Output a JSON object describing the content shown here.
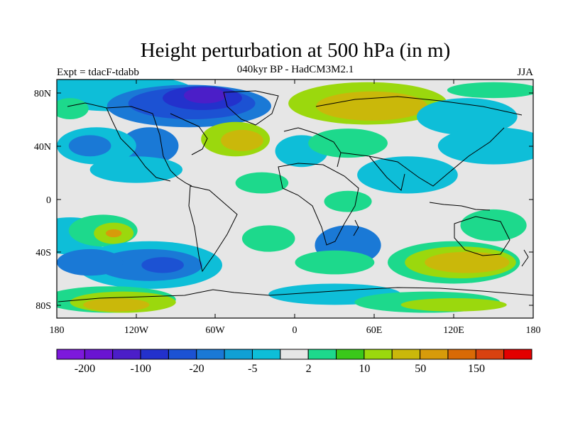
{
  "title": "Height perturbation at 500 hPa (in m)",
  "subtitle": "040kyr BP - HadCM3M2.1",
  "left_label": "Expt = tdacF-tdabb",
  "right_label": "JJA",
  "y_ticks": [
    "80N",
    "40N",
    "0",
    "40S",
    "80S"
  ],
  "x_ticks": [
    "180",
    "120W",
    "60W",
    "0",
    "60E",
    "120E",
    "180"
  ],
  "colorbar": {
    "colors": [
      "#7d19dc",
      "#6a14d2",
      "#4b1ec8",
      "#2331cc",
      "#1c52d3",
      "#1a79d6",
      "#10a0d4",
      "#0ebed8",
      "#e6e6e6",
      "#1dd98c",
      "#3ac81a",
      "#9bd80d",
      "#cab80a",
      "#d79b0a",
      "#d96a06",
      "#d9420f",
      "#e30000"
    ],
    "labels": [
      "-200",
      "-100",
      "-20",
      "-5",
      "2",
      "10",
      "50",
      "150"
    ]
  },
  "map_fields": {
    "grey": "#e6e6e6",
    "blobs": [
      {
        "c": "#0ebed8",
        "lon": -135,
        "lat": 80,
        "rx": 60,
        "ry": 14
      },
      {
        "c": "#1a79d6",
        "lon": -80,
        "lat": 70,
        "rx": 62,
        "ry": 16
      },
      {
        "c": "#1c52d3",
        "lon": -78,
        "lat": 72,
        "rx": 48,
        "ry": 12
      },
      {
        "c": "#2331cc",
        "lon": -70,
        "lat": 76,
        "rx": 30,
        "ry": 9
      },
      {
        "c": "#4b1ec8",
        "lon": -68,
        "lat": 78,
        "rx": 16,
        "ry": 6
      },
      {
        "c": "#1a79d6",
        "lon": -110,
        "lat": 40,
        "rx": 22,
        "ry": 14
      },
      {
        "c": "#0ebed8",
        "lon": -150,
        "lat": 40,
        "rx": 30,
        "ry": 14
      },
      {
        "c": "#1a79d6",
        "lon": -155,
        "lat": 40,
        "rx": 16,
        "ry": 8
      },
      {
        "c": "#0ebed8",
        "lon": -120,
        "lat": 22,
        "rx": 35,
        "ry": 10
      },
      {
        "c": "#9bd80d",
        "lon": -45,
        "lat": 45,
        "rx": 26,
        "ry": 13
      },
      {
        "c": "#cab80a",
        "lon": -40,
        "lat": 44,
        "rx": 16,
        "ry": 8
      },
      {
        "c": "#1dd98c",
        "lon": -170,
        "lat": 68,
        "rx": 14,
        "ry": 8
      },
      {
        "c": "#9bd80d",
        "lon": 55,
        "lat": 72,
        "rx": 60,
        "ry": 16
      },
      {
        "c": "#cab80a",
        "lon": 58,
        "lat": 70,
        "rx": 42,
        "ry": 11
      },
      {
        "c": "#1dd98c",
        "lon": 150,
        "lat": 82,
        "rx": 35,
        "ry": 6
      },
      {
        "c": "#1a79d6",
        "lon": 130,
        "lat": 62,
        "rx": 25,
        "ry": 9
      },
      {
        "c": "#0ebed8",
        "lon": 130,
        "lat": 62,
        "rx": 38,
        "ry": 14
      },
      {
        "c": "#1a79d6",
        "lon": 155,
        "lat": 38,
        "rx": 30,
        "ry": 10
      },
      {
        "c": "#0ebed8",
        "lon": 150,
        "lat": 40,
        "rx": 42,
        "ry": 14
      },
      {
        "c": "#0ebed8",
        "lon": 5,
        "lat": 36,
        "rx": 20,
        "ry": 12
      },
      {
        "c": "#1dd98c",
        "lon": 40,
        "lat": 42,
        "rx": 30,
        "ry": 11
      },
      {
        "c": "#1a79d6",
        "lon": 90,
        "lat": 18,
        "rx": 28,
        "ry": 10
      },
      {
        "c": "#0ebed8",
        "lon": 85,
        "lat": 18,
        "rx": 38,
        "ry": 14
      },
      {
        "c": "#1dd98c",
        "lon": -25,
        "lat": 12,
        "rx": 20,
        "ry": 8
      },
      {
        "c": "#1dd98c",
        "lon": 40,
        "lat": -2,
        "rx": 18,
        "ry": 8
      },
      {
        "c": "#0ebed8",
        "lon": -170,
        "lat": -28,
        "rx": 30,
        "ry": 14
      },
      {
        "c": "#1dd98c",
        "lon": -145,
        "lat": -24,
        "rx": 26,
        "ry": 12
      },
      {
        "c": "#9bd80d",
        "lon": -137,
        "lat": -26,
        "rx": 15,
        "ry": 8
      },
      {
        "c": "#d79b0a",
        "lon": -137,
        "lat": -26,
        "rx": 6,
        "ry": 3
      },
      {
        "c": "#1dd98c",
        "lon": -20,
        "lat": -30,
        "rx": 20,
        "ry": 10
      },
      {
        "c": "#1a79d6",
        "lon": 40,
        "lat": -35,
        "rx": 25,
        "ry": 15
      },
      {
        "c": "#1dd98c",
        "lon": 150,
        "lat": -20,
        "rx": 25,
        "ry": 12
      },
      {
        "c": "#0ebed8",
        "lon": -110,
        "lat": -50,
        "rx": 55,
        "ry": 18
      },
      {
        "c": "#1a79d6",
        "lon": -110,
        "lat": -50,
        "rx": 40,
        "ry": 12
      },
      {
        "c": "#1c52d3",
        "lon": -100,
        "lat": -50,
        "rx": 16,
        "ry": 6
      },
      {
        "c": "#1a79d6",
        "lon": -155,
        "lat": -48,
        "rx": 25,
        "ry": 10
      },
      {
        "c": "#1dd98c",
        "lon": 30,
        "lat": -48,
        "rx": 30,
        "ry": 9
      },
      {
        "c": "#1dd98c",
        "lon": 120,
        "lat": -48,
        "rx": 50,
        "ry": 16
      },
      {
        "c": "#9bd80d",
        "lon": 125,
        "lat": -48,
        "rx": 42,
        "ry": 12
      },
      {
        "c": "#cab80a",
        "lon": 130,
        "lat": -48,
        "rx": 32,
        "ry": 8
      },
      {
        "c": "#1dd98c",
        "lon": -140,
        "lat": -76,
        "rx": 50,
        "ry": 10
      },
      {
        "c": "#9bd80d",
        "lon": -130,
        "lat": -78,
        "rx": 40,
        "ry": 8
      },
      {
        "c": "#cab80a",
        "lon": -135,
        "lat": -80,
        "rx": 25,
        "ry": 5
      },
      {
        "c": "#0ebed8",
        "lon": 30,
        "lat": -72,
        "rx": 50,
        "ry": 8
      },
      {
        "c": "#1dd98c",
        "lon": 100,
        "lat": -78,
        "rx": 55,
        "ry": 8
      },
      {
        "c": "#9bd80d",
        "lon": 120,
        "lat": -80,
        "rx": 40,
        "ry": 5
      }
    ]
  }
}
